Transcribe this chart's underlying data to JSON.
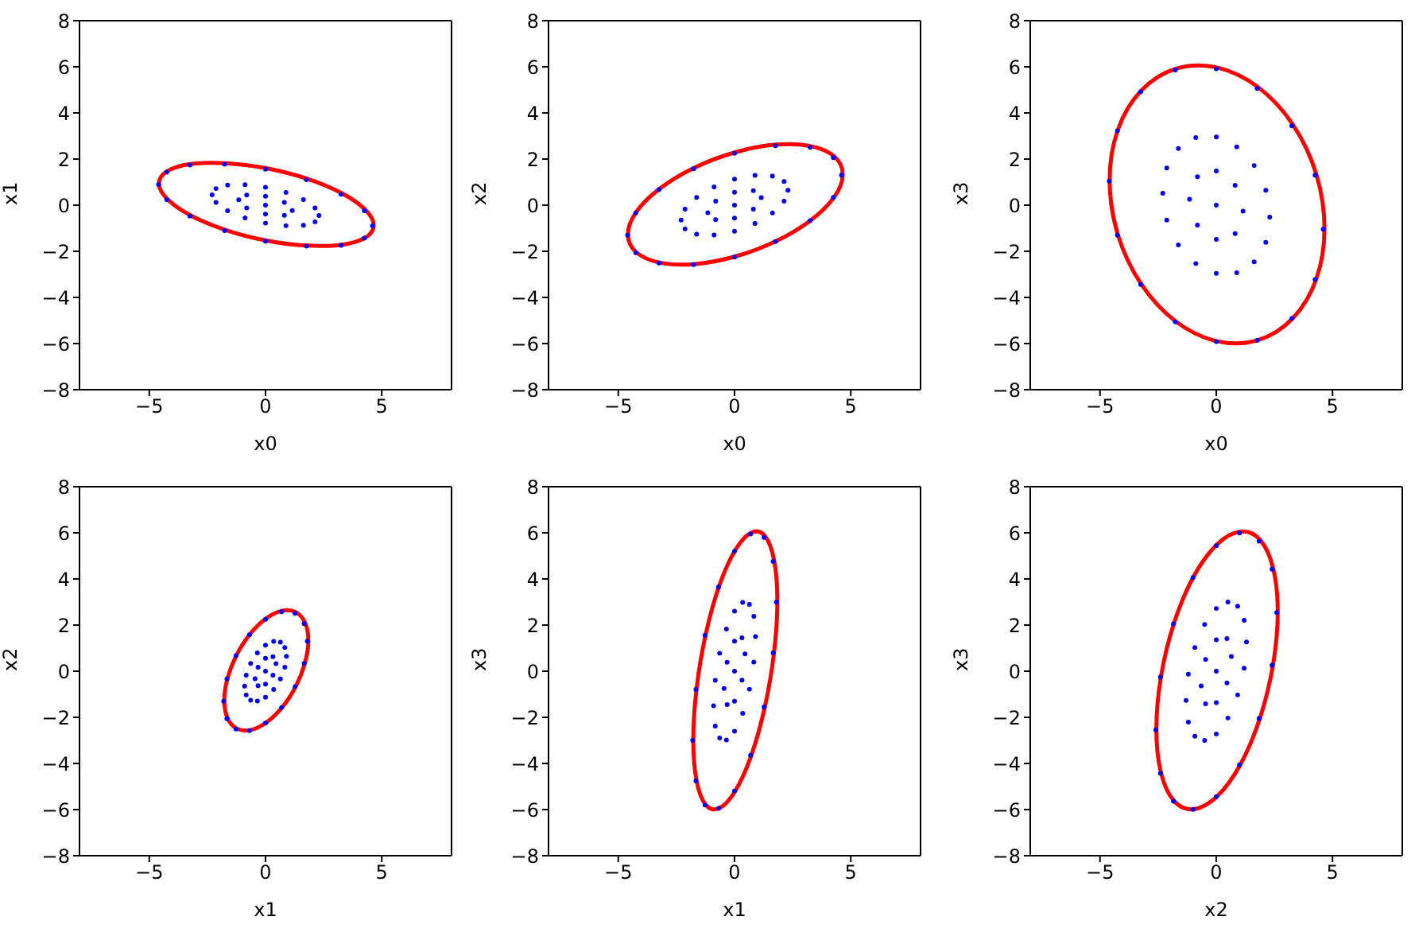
{
  "chart_data": [
    {
      "type": "scatter",
      "xlabel": "x0",
      "ylabel": "x1",
      "xlim": [
        -8,
        8
      ],
      "ylim": [
        -8,
        8
      ],
      "xticks": [
        -5,
        0,
        5
      ],
      "yticks": [
        -8,
        -6,
        -4,
        -2,
        0,
        2,
        4,
        6,
        8
      ],
      "series": [
        {
          "type": "scatter",
          "marker": "circle",
          "color": "#0000ff",
          "x": [
            4.6,
            4.25,
            3.25,
            1.76,
            0,
            -1.76,
            -3.25,
            -4.25,
            -4.6,
            -4.25,
            -3.25,
            -1.76,
            0,
            1.76,
            3.25,
            4.25,
            2.3,
            2.13,
            1.63,
            0.88,
            0,
            -0.88,
            -1.63,
            -2.13,
            -2.3,
            -2.13,
            -1.63,
            -0.88,
            0,
            0.88,
            1.63,
            2.13,
            1.15,
            0.81,
            0,
            -0.81,
            -1.15,
            -0.81,
            0,
            0.81,
            0
          ],
          "values": [
            -0.9,
            -1.43,
            -1.74,
            -1.78,
            -1.56,
            -1.1,
            -0.47,
            0.24,
            0.9,
            1.43,
            1.74,
            1.78,
            1.56,
            1.1,
            0.47,
            -0.24,
            -0.45,
            -0.72,
            -0.87,
            -0.89,
            -0.78,
            -0.55,
            -0.24,
            0.12,
            0.45,
            0.72,
            0.87,
            0.89,
            0.78,
            0.55,
            0.24,
            -0.12,
            -0.23,
            -0.44,
            -0.39,
            -0.12,
            0.23,
            0.44,
            0.39,
            0.12,
            0
          ]
        }
      ]
    },
    {
      "type": "scatter",
      "xlabel": "x0",
      "ylabel": "x2",
      "xlim": [
        -8,
        8
      ],
      "ylim": [
        -8,
        8
      ],
      "xticks": [
        -5,
        0,
        5
      ],
      "yticks": [
        -8,
        -6,
        -4,
        -2,
        0,
        2,
        4,
        6,
        8
      ],
      "series": [
        {
          "type": "scatter",
          "marker": "circle",
          "color": "#0000ff",
          "x": [
            4.6,
            4.25,
            3.25,
            1.76,
            0,
            -1.76,
            -3.25,
            -4.25,
            -4.6,
            -4.25,
            -3.25,
            -1.76,
            0,
            1.76,
            3.25,
            4.25,
            2.3,
            2.13,
            1.63,
            0.88,
            0,
            -0.88,
            -1.63,
            -2.13,
            -2.3,
            -2.13,
            -1.63,
            -0.88,
            0,
            0.88,
            1.63,
            2.13,
            1.15,
            0.81,
            0,
            -0.81,
            -1.15,
            -0.81,
            0,
            0.81,
            0
          ],
          "values": [
            1.3,
            2.06,
            2.51,
            2.58,
            2.25,
            1.58,
            0.67,
            -0.34,
            -1.3,
            -2.06,
            -2.51,
            -2.58,
            -2.25,
            -1.58,
            -0.67,
            0.34,
            0.65,
            1.03,
            1.26,
            1.29,
            1.13,
            0.79,
            0.34,
            -0.17,
            -0.65,
            -1.03,
            -1.26,
            -1.29,
            -1.13,
            -0.79,
            -0.34,
            0.17,
            0.33,
            0.63,
            0.56,
            0.17,
            -0.33,
            -0.63,
            -0.56,
            -0.17,
            0
          ]
        }
      ]
    },
    {
      "type": "scatter",
      "xlabel": "x0",
      "ylabel": "x3",
      "xlim": [
        -8,
        8
      ],
      "ylim": [
        -8,
        8
      ],
      "xticks": [
        -5,
        0,
        5
      ],
      "yticks": [
        -8,
        -6,
        -4,
        -2,
        0,
        2,
        4,
        6,
        8
      ],
      "series": [
        {
          "type": "scatter",
          "marker": "circle",
          "color": "#0000ff",
          "x": [
            4.6,
            4.25,
            3.25,
            1.76,
            0,
            -1.76,
            -3.25,
            -4.25,
            -4.6,
            -4.25,
            -3.25,
            -1.76,
            0,
            1.76,
            3.25,
            4.25,
            2.3,
            2.13,
            1.63,
            0.88,
            0,
            -0.88,
            -1.63,
            -2.13,
            -2.3,
            -2.13,
            -1.63,
            -0.88,
            0,
            0.88,
            1.63,
            2.13,
            1.15,
            0.81,
            0,
            -0.81,
            -1.15,
            -0.81,
            0,
            0.81,
            0
          ],
          "values": [
            -1.04,
            -3.22,
            -4.91,
            -5.86,
            -5.91,
            -5.06,
            -3.44,
            -1.3,
            1.04,
            3.22,
            4.91,
            5.86,
            5.91,
            5.06,
            3.44,
            1.3,
            -0.52,
            -1.61,
            -2.46,
            -2.93,
            -2.96,
            -2.53,
            -1.72,
            -0.65,
            0.52,
            1.61,
            2.46,
            2.93,
            2.96,
            2.53,
            1.72,
            0.65,
            -0.26,
            -1.23,
            -1.48,
            -0.86,
            0.26,
            1.23,
            1.48,
            0.86,
            0
          ]
        }
      ]
    },
    {
      "type": "scatter",
      "xlabel": "x1",
      "ylabel": "x2",
      "xlim": [
        -8,
        8
      ],
      "ylim": [
        -8,
        8
      ],
      "xticks": [
        -5,
        0,
        5
      ],
      "yticks": [
        -8,
        -6,
        -4,
        -2,
        0,
        2,
        4,
        6,
        8
      ],
      "series": [
        {
          "type": "scatter",
          "marker": "circle",
          "color": "#0000ff",
          "x": [
            1.8,
            1.66,
            1.27,
            0.69,
            0,
            -0.69,
            -1.27,
            -1.66,
            -1.8,
            -1.66,
            -1.27,
            -0.69,
            0,
            0.69,
            1.27,
            1.66,
            0.9,
            0.83,
            0.64,
            0.35,
            0,
            -0.35,
            -0.64,
            -0.83,
            -0.9,
            -0.83,
            -0.64,
            -0.35,
            0,
            0.35,
            0.64,
            0.83,
            0.45,
            0.32,
            0,
            -0.32,
            -0.45,
            -0.32,
            0,
            0.32,
            0
          ],
          "values": [
            1.3,
            2.06,
            2.51,
            2.58,
            2.25,
            1.58,
            0.67,
            -0.34,
            -1.3,
            -2.06,
            -2.51,
            -2.58,
            -2.25,
            -1.58,
            -0.67,
            0.34,
            0.65,
            1.03,
            1.26,
            1.29,
            1.13,
            0.79,
            0.34,
            -0.17,
            -0.65,
            -1.03,
            -1.26,
            -1.29,
            -1.13,
            -0.79,
            -0.34,
            0.17,
            0.33,
            0.63,
            0.56,
            0.17,
            -0.33,
            -0.63,
            -0.56,
            -0.17,
            0
          ]
        }
      ]
    },
    {
      "type": "scatter",
      "xlabel": "x1",
      "ylabel": "x3",
      "xlim": [
        -8,
        8
      ],
      "ylim": [
        -8,
        8
      ],
      "xticks": [
        -5,
        0,
        5
      ],
      "yticks": [
        -8,
        -6,
        -4,
        -2,
        0,
        2,
        4,
        6,
        8
      ],
      "series": [
        {
          "type": "scatter",
          "marker": "circle",
          "color": "#0000ff",
          "x": [
            1.8,
            1.66,
            1.27,
            0.69,
            0,
            -0.69,
            -1.27,
            -1.66,
            -1.8,
            -1.66,
            -1.27,
            -0.69,
            0,
            0.69,
            1.27,
            1.66,
            0.9,
            0.83,
            0.64,
            0.35,
            0,
            -0.35,
            -0.64,
            -0.83,
            -0.9,
            -0.83,
            -0.64,
            -0.35,
            0,
            0.35,
            0.64,
            0.83,
            0.45,
            0.32,
            0,
            -0.32,
            -0.45,
            -0.32,
            0,
            0.32,
            0
          ],
          "values": [
            3.0,
            4.76,
            5.8,
            5.95,
            5.2,
            3.65,
            1.55,
            -0.79,
            -3.0,
            -4.76,
            -5.8,
            -5.95,
            -5.2,
            -3.65,
            -1.55,
            0.79,
            1.5,
            2.38,
            2.9,
            2.98,
            2.6,
            1.83,
            0.78,
            -0.4,
            -1.5,
            -2.38,
            -2.9,
            -2.98,
            -2.6,
            -1.83,
            -0.78,
            0.4,
            0.75,
            1.45,
            1.3,
            0.39,
            -0.75,
            -1.45,
            -1.3,
            -0.39,
            0
          ]
        }
      ]
    },
    {
      "type": "scatter",
      "xlabel": "x2",
      "ylabel": "x3",
      "xlim": [
        -8,
        8
      ],
      "ylim": [
        -8,
        8
      ],
      "xticks": [
        -5,
        0,
        5
      ],
      "yticks": [
        -8,
        -6,
        -4,
        -2,
        0,
        2,
        4,
        6,
        8
      ],
      "series": [
        {
          "type": "scatter",
          "marker": "circle",
          "color": "#0000ff",
          "x": [
            2.6,
            2.4,
            1.84,
            1.0,
            0,
            -1.0,
            -1.84,
            -2.4,
            -2.6,
            -2.4,
            -1.84,
            -1.0,
            0,
            1.0,
            1.84,
            2.4,
            1.3,
            1.2,
            0.92,
            0.5,
            0,
            -0.5,
            -0.92,
            -1.2,
            -1.3,
            -1.2,
            -0.92,
            -0.5,
            0,
            0.5,
            0.92,
            1.2,
            0.65,
            0.46,
            0,
            -0.46,
            -0.65,
            -0.46,
            0,
            0.46,
            0
          ],
          "values": [
            2.54,
            4.42,
            5.64,
            5.99,
            5.44,
            4.06,
            2.05,
            -0.26,
            -2.54,
            -4.42,
            -5.64,
            -5.99,
            -5.44,
            -4.06,
            -2.05,
            0.26,
            1.27,
            2.21,
            2.82,
            3.0,
            2.72,
            2.03,
            1.03,
            -0.13,
            -1.27,
            -2.21,
            -2.82,
            -3.0,
            -2.72,
            -2.03,
            -1.03,
            0.13,
            0.64,
            1.41,
            1.36,
            0.51,
            -0.64,
            -1.41,
            -1.36,
            -0.51,
            0
          ]
        }
      ]
    }
  ]
}
